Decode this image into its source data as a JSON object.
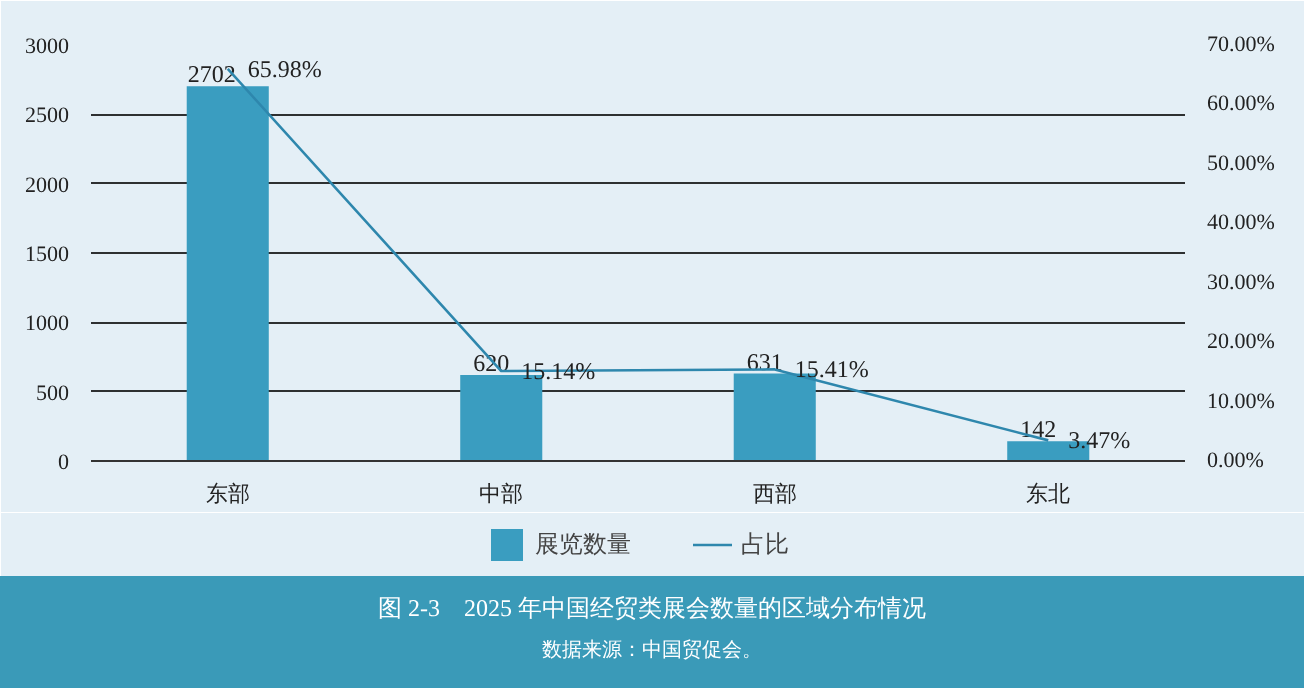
{
  "chart_data": {
    "type": "bar",
    "title": "图 2-3　2025 年中国经贸类展会数量的区域分布情况",
    "annotations": [
      "数据来源：中国贸促会。"
    ],
    "categories": [
      "东部",
      "中部",
      "西部",
      "东北"
    ],
    "series": [
      {
        "name": "展览数量",
        "color": "#3a9dc0",
        "values": [
          2702,
          620,
          631,
          142
        ],
        "value_labels": [
          "2702",
          "620",
          "631",
          "142"
        ]
      },
      {
        "name": "占比",
        "type": "line",
        "axis": "y2",
        "color": "#2e87ad",
        "values": [
          65.98,
          15.14,
          15.41,
          3.47
        ],
        "value_labels": [
          "65.98%",
          "15.14%",
          "15.41%",
          "3.47%"
        ]
      }
    ],
    "ylim": [
      0,
      3000
    ],
    "yticks": [
      0,
      500,
      1000,
      1500,
      2000,
      2500,
      3000
    ],
    "y2lim": [
      0,
      70
    ],
    "y2ticks": [
      {
        "value": 0,
        "label": "0.00%"
      },
      {
        "value": 10,
        "label": "10.00%"
      },
      {
        "value": 20,
        "label": "20.00%"
      },
      {
        "value": 30,
        "label": "30.00%"
      },
      {
        "value": 40,
        "label": "40.00%"
      },
      {
        "value": 50,
        "label": "50.00%"
      },
      {
        "value": 60,
        "label": "60.00%"
      },
      {
        "value": 70,
        "label": "70.00%"
      }
    ],
    "grid": "y",
    "legend": "bottom",
    "marker": "none"
  }
}
